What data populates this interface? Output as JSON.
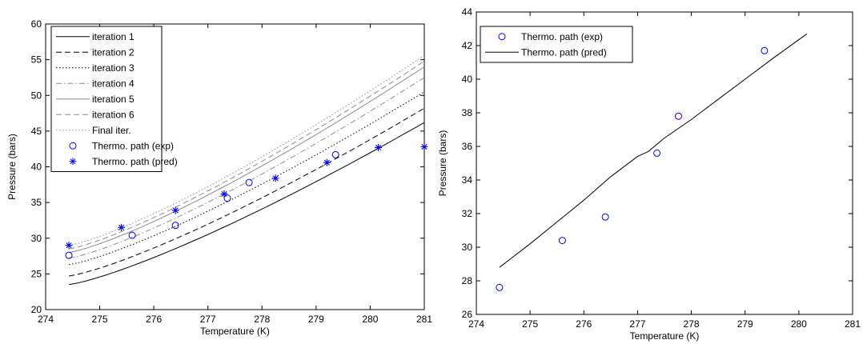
{
  "figure": {
    "colors": {
      "marker": "#0000ff",
      "axis": "#000000",
      "line_black": "#000000",
      "line_gray": "#8c8c8c"
    }
  },
  "chart_data": [
    {
      "type": "line",
      "xlabel": "Temperature (K)",
      "ylabel": "Pressure (bars)",
      "xlim": [
        274,
        281
      ],
      "ylim": [
        20,
        60
      ],
      "xticks": [
        "274",
        "275",
        "276",
        "277",
        "278",
        "279",
        "280",
        "281"
      ],
      "yticks": [
        "20",
        "25",
        "30",
        "35",
        "40",
        "45",
        "50",
        "55",
        "60"
      ],
      "grid": false,
      "legend_position": "top-left",
      "line_x": [
        274.43,
        275,
        275.6,
        276.2,
        276.8,
        277.4,
        278,
        278.6,
        279.2,
        279.8,
        280.4,
        281
      ],
      "series": [
        {
          "name": "iteration 1",
          "style": "solid",
          "color": "black",
          "y_start": 23.5,
          "y_end": 46.2
        },
        {
          "name": "iteration 2",
          "style": "dashed",
          "color": "black",
          "y_start": 24.7,
          "y_end": 48.2
        },
        {
          "name": "iteration 3",
          "style": "dotted",
          "color": "black",
          "y_start": 26.3,
          "y_end": 50.5
        },
        {
          "name": "iteration 4",
          "style": "dashdot",
          "color": "gray",
          "y_start": 27.2,
          "y_end": 52.5
        },
        {
          "name": "iteration 5",
          "style": "solid",
          "color": "gray",
          "y_start": 28.0,
          "y_end": 54.0
        },
        {
          "name": "iteration 6",
          "style": "dashed",
          "color": "gray",
          "y_start": 28.5,
          "y_end": 54.8
        },
        {
          "name": "Final iter.",
          "style": "dotted",
          "color": "gray",
          "y_start": 29.0,
          "y_end": 55.6
        }
      ],
      "markers": [
        {
          "name": "Thermo. path (exp)",
          "symbol": "circle",
          "x": [
            274.43,
            275.6,
            276.4,
            277.36,
            277.76,
            279.36
          ],
          "y": [
            27.6,
            30.4,
            31.8,
            35.6,
            37.8,
            41.7
          ]
        },
        {
          "name": "Thermo. path (pred)",
          "symbol": "star",
          "x": [
            274.43,
            275.4,
            276.4,
            277.3,
            278.25,
            279.2,
            280.15,
            281.0
          ],
          "y": [
            29.0,
            31.5,
            33.9,
            36.2,
            38.4,
            40.6,
            42.7,
            42.8
          ]
        }
      ]
    },
    {
      "type": "line",
      "xlabel": "Temperature (K)",
      "ylabel": "Pressure (bars)",
      "xlim": [
        274,
        281
      ],
      "ylim": [
        26,
        44
      ],
      "xticks": [
        "274",
        "275",
        "276",
        "277",
        "278",
        "279",
        "280",
        "281"
      ],
      "yticks": [
        "26",
        "28",
        "30",
        "32",
        "34",
        "36",
        "38",
        "40",
        "42",
        "44"
      ],
      "grid": false,
      "legend_position": "top-left",
      "series": [
        {
          "name": "Thermo. path (pred)",
          "style": "solid",
          "color": "black",
          "x": [
            274.43,
            275.0,
            275.5,
            276.0,
            276.5,
            277.0,
            277.2,
            277.5,
            278.0,
            278.5,
            279.0,
            279.5,
            280.15
          ],
          "y": [
            28.8,
            30.2,
            31.5,
            32.8,
            34.2,
            35.4,
            35.7,
            36.5,
            37.6,
            38.8,
            40.0,
            41.2,
            42.7
          ]
        }
      ],
      "markers": [
        {
          "name": "Thermo. path (exp)",
          "symbol": "circle",
          "x": [
            274.43,
            275.6,
            276.4,
            277.36,
            277.76,
            279.36
          ],
          "y": [
            27.6,
            30.4,
            31.8,
            35.6,
            37.8,
            41.7
          ]
        }
      ]
    }
  ]
}
